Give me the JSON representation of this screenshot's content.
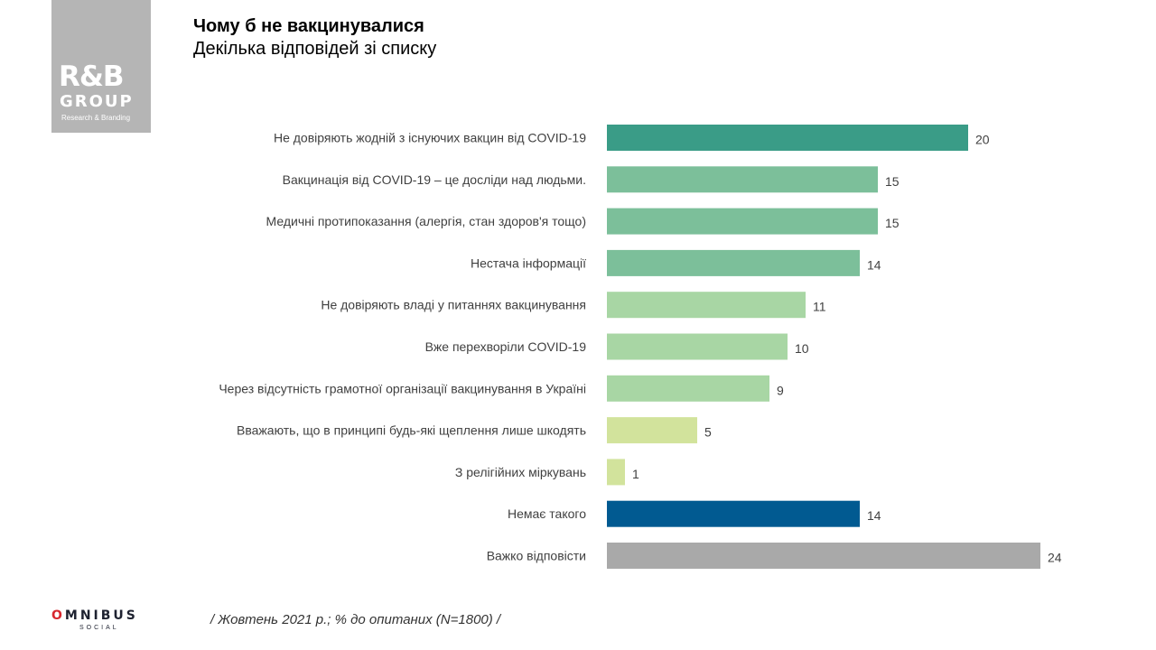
{
  "logo": {
    "mark": "R&B",
    "group": "GROUP",
    "tagline": "Research & Branding"
  },
  "header": {
    "title": "Чому б не вакцинувалися",
    "subtitle": "Декілька відповідей  зі списку"
  },
  "chart_data": {
    "type": "bar",
    "orientation": "horizontal",
    "categories": [
      "Не довіряють жодній з існуючих вакцин від COVID-19",
      "Вакцинація від COVID-19 – це досліди над людьми.",
      "Медичні протипоказання  (алергія, стан здоров'я тощо)",
      "Нестача інформації",
      "Не довіряють владі у питаннях вакцинування",
      "Вже перехворіли  COVID-19",
      "Через відсутність грамотної організації вакцинування в Україні",
      "Вважають, що в принципі будь-які щеплення лише шкодять",
      "З релігійних  міркувань",
      "Немає такого",
      "Важко відповісти"
    ],
    "values": [
      20,
      15,
      15,
      14,
      11,
      10,
      9,
      5,
      1,
      14,
      24
    ],
    "colors": [
      "#3a9c87",
      "#7cbf9a",
      "#7cbf9a",
      "#7cbf9a",
      "#a8d6a4",
      "#a8d6a4",
      "#a8d6a4",
      "#d2e39c",
      "#d2e39c",
      "#015a91",
      "#a9a9a9"
    ],
    "xlim": [
      0,
      24
    ],
    "grid": false,
    "legend": "none"
  },
  "brand": {
    "name_first": "O",
    "name_rest": "MNIBUS",
    "sub": "SOCIAL",
    "accent": "#d7282f"
  },
  "footer": {
    "note": "/ Жовтень 2021 р.; % до опитаних (N=1800) /"
  }
}
